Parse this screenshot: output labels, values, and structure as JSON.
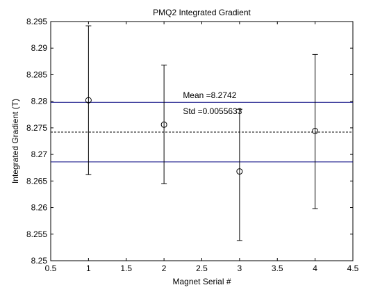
{
  "chart_data": {
    "type": "scatter",
    "title": "PMQ2 Integrated Gradient",
    "xlabel": "Magnet Serial #",
    "ylabel": "Integrated Gradient (T)",
    "xlim": [
      0.5,
      4.5
    ],
    "ylim": [
      8.25,
      8.295
    ],
    "xticks": [
      0.5,
      1,
      1.5,
      2,
      2.5,
      3,
      3.5,
      4,
      4.5
    ],
    "yticks": [
      8.25,
      8.255,
      8.26,
      8.265,
      8.27,
      8.275,
      8.28,
      8.285,
      8.29,
      8.295
    ],
    "xtick_labels": [
      "0.5",
      "1",
      "1.5",
      "2",
      "2.5",
      "3",
      "3.5",
      "4",
      "4.5"
    ],
    "ytick_labels": [
      "8.25",
      "8.255",
      "8.26",
      "8.265",
      "8.27",
      "8.275",
      "8.28",
      "8.285",
      "8.29",
      "8.295"
    ],
    "grid": false,
    "series": [
      {
        "marker": "circle",
        "color": "#000000",
        "x": [
          1,
          2,
          3,
          4
        ],
        "y": [
          8.2802,
          8.2756,
          8.2668,
          8.2744
        ],
        "err_low": [
          8.2662,
          8.2645,
          8.2538,
          8.2598
        ],
        "err_high": [
          8.2942,
          8.2868,
          8.2785,
          8.2888
        ]
      }
    ],
    "reference_lines": [
      {
        "y": 8.2742,
        "style": "dashed",
        "color": "#000000"
      },
      {
        "y": 8.2798,
        "style": "solid",
        "color": "#00007f"
      },
      {
        "y": 8.2686,
        "style": "solid",
        "color": "#00007f"
      }
    ],
    "annotations": [
      {
        "text": "Mean =8.2742",
        "x": 2.25,
        "y": 8.2806
      },
      {
        "text": "Std =0.0055633",
        "x": 2.25,
        "y": 8.2776
      }
    ]
  }
}
